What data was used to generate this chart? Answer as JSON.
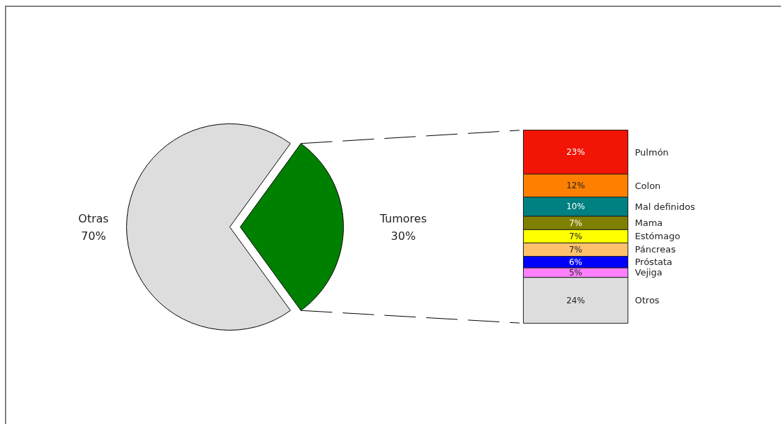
{
  "chart_data": [
    {
      "type": "pie",
      "categories": [
        "Otras",
        "Tumores"
      ],
      "values": [
        70,
        30
      ],
      "colors": [
        "#dddddd",
        "#008000"
      ],
      "value_labels": [
        "70%",
        "30%"
      ]
    },
    {
      "type": "bar",
      "stacked": true,
      "categories": [
        null
      ],
      "series": [
        {
          "name": "Otros",
          "color": "#dddddd",
          "values": [
            24
          ],
          "value_labels": [
            "24%"
          ]
        },
        {
          "name": "Vejiga",
          "color": "#ff80ff",
          "values": [
            5
          ],
          "value_labels": [
            "5%"
          ]
        },
        {
          "name": "Próstata",
          "color": "#0000ff",
          "values": [
            6
          ],
          "value_labels": [
            "6%"
          ]
        },
        {
          "name": "Páncreas",
          "color": "#ffc06e",
          "values": [
            7
          ],
          "value_labels": [
            "7%"
          ]
        },
        {
          "name": "Estómago",
          "color": "#ffff00",
          "values": [
            7
          ],
          "value_labels": [
            "7%"
          ]
        },
        {
          "name": "Mama",
          "color": "#808000",
          "values": [
            7
          ],
          "value_labels": [
            "7%"
          ]
        },
        {
          "name": "Mal definidos",
          "color": "#008080",
          "values": [
            10
          ],
          "value_labels": [
            "10%"
          ]
        },
        {
          "name": "Colon",
          "color": "#ff8000",
          "values": [
            12
          ],
          "value_labels": [
            "12%"
          ]
        },
        {
          "name": "Pulmón",
          "color": "#f21405",
          "values": [
            23
          ],
          "value_labels": [
            "23%"
          ]
        }
      ]
    }
  ]
}
